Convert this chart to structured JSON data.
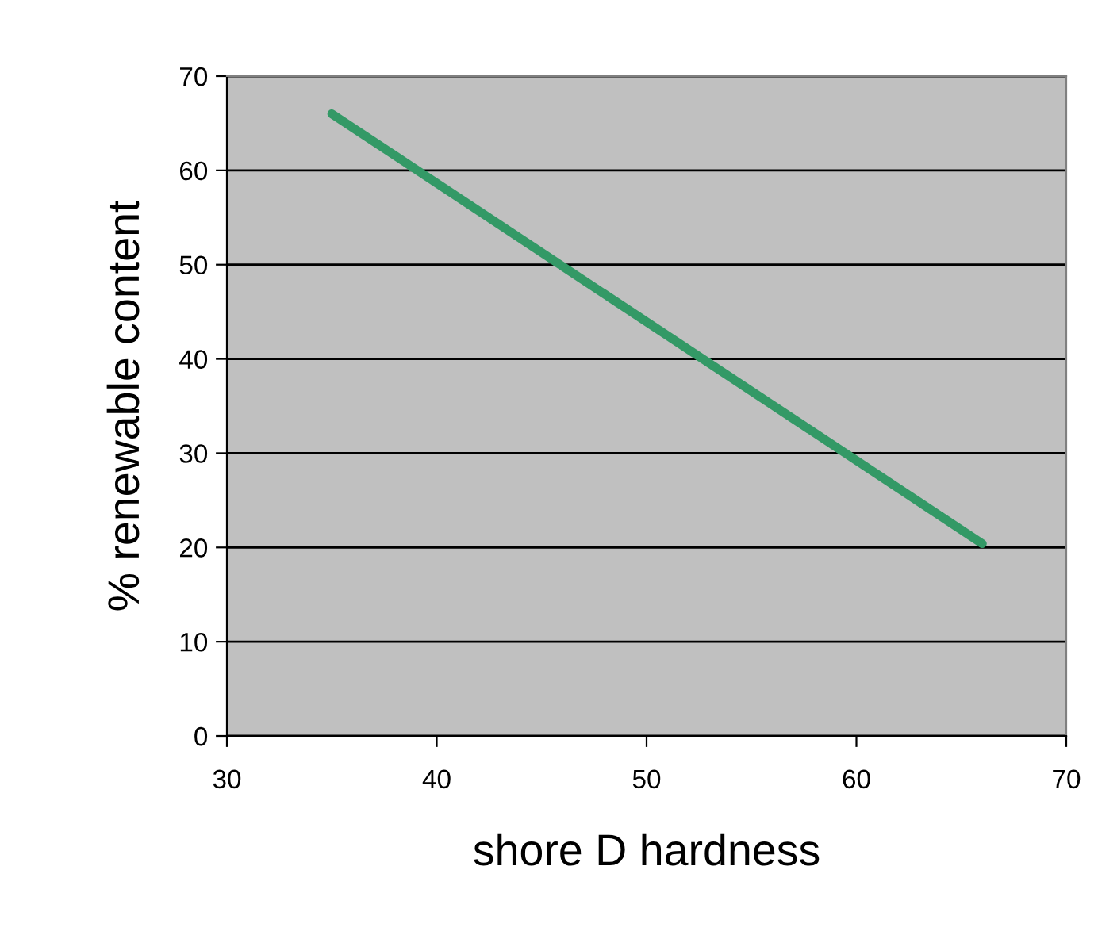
{
  "chart_data": {
    "type": "line",
    "xlabel": "shore D hardness",
    "ylabel": "% renewable content",
    "x": [
      35,
      66
    ],
    "series": [
      {
        "color": "#339966",
        "values": [
          66,
          20.4
        ]
      }
    ],
    "xlim": [
      30,
      70
    ],
    "xticks": [
      30,
      40,
      50,
      60,
      70
    ],
    "ylim": [
      0,
      70
    ],
    "yticks": [
      0,
      10,
      20,
      30,
      40,
      50,
      60,
      70
    ],
    "grid": "y",
    "legend": false,
    "marker": "none",
    "line_style": "solid"
  }
}
